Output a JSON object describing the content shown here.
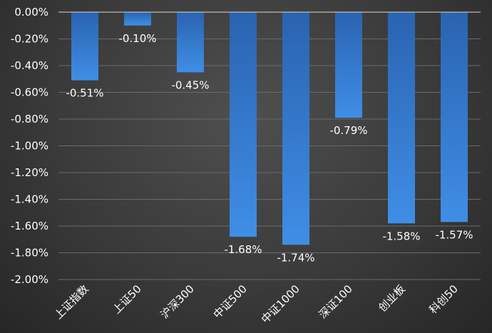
{
  "chart_data": {
    "type": "bar",
    "categories": [
      "上证指数",
      "上证50",
      "沪深300",
      "中证500",
      "中证1000",
      "深证100",
      "创业板",
      "科创50"
    ],
    "values": [
      -0.51,
      -0.1,
      -0.45,
      -1.68,
      -1.74,
      -0.79,
      -1.58,
      -1.57
    ],
    "value_labels": [
      "-0.51%",
      "-0.10%",
      "-0.45%",
      "-1.68%",
      "-1.74%",
      "-0.79%",
      "-1.58%",
      "-1.57%"
    ],
    "ylim": [
      -2.0,
      0.0
    ],
    "yticks": [
      0.0,
      -0.2,
      -0.4,
      -0.6,
      -0.8,
      -1.0,
      -1.2,
      -1.4,
      -1.6,
      -1.8,
      -2.0
    ],
    "ytick_labels": [
      "0.00%",
      "-0.20%",
      "-0.40%",
      "-0.60%",
      "-0.80%",
      "-1.00%",
      "-1.20%",
      "-1.40%",
      "-1.60%",
      "-1.80%",
      "-2.00%"
    ],
    "grid": true,
    "legend": "none",
    "colors": {
      "bar_top": "#2a63b0",
      "bar_bottom": "#3f8ee6",
      "text": "#ffffff"
    }
  }
}
